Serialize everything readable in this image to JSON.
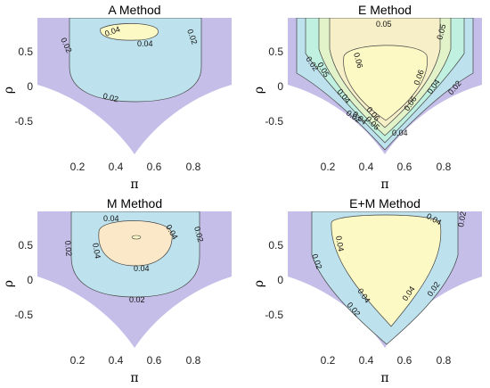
{
  "chart_data": [
    {
      "type": "contour",
      "title": "A Method",
      "xlabel": "π",
      "ylabel": "ρ",
      "xlim": [
        0,
        1
      ],
      "ylim": [
        -1,
        1
      ],
      "xticks": [
        "0.2",
        "0.4",
        "0.6",
        "0.8"
      ],
      "yticks": [
        "0.5",
        "0",
        "-0.5"
      ],
      "levels": [
        0.02,
        0.04
      ],
      "contour_labels": [
        "0.04",
        "0.04",
        "0.02",
        "0.02",
        "0.02"
      ],
      "grid": false
    },
    {
      "type": "contour",
      "title": "E Method",
      "xlabel": "π",
      "ylabel": "ρ",
      "xlim": [
        0,
        1
      ],
      "ylim": [
        -1,
        1
      ],
      "xticks": [
        "0.2",
        "0.4",
        "0.6",
        "0.8"
      ],
      "yticks": [
        "0.5",
        "0",
        "-0.5"
      ],
      "levels": [
        0.02,
        0.04,
        0.05,
        0.06
      ],
      "contour_labels": [
        "0.05",
        "0.05",
        "0.02",
        "0.04",
        "0.06",
        "0.06",
        "0.05",
        "0.04",
        "0.02",
        "0.04",
        "0.02",
        "0.06",
        "0.06",
        "0.05",
        "0.04"
      ],
      "grid": false
    },
    {
      "type": "contour",
      "title": "M Method",
      "xlabel": "π",
      "ylabel": "ρ",
      "xlim": [
        0,
        1
      ],
      "ylim": [
        -1,
        1
      ],
      "xticks": [
        "0.2",
        "0.4",
        "0.6",
        "0.8"
      ],
      "yticks": [
        "0.5",
        "0",
        "-0.5"
      ],
      "levels": [
        0.02,
        0.04
      ],
      "contour_labels": [
        "0.04",
        "0.04",
        "0.02",
        "0.04",
        "0.02",
        "0.04",
        "0.02"
      ],
      "grid": false
    },
    {
      "type": "contour",
      "title": "E+M Method",
      "xlabel": "π",
      "ylabel": "ρ",
      "xlim": [
        0,
        1
      ],
      "ylim": [
        -1,
        1
      ],
      "xticks": [
        "0.2",
        "0.4",
        "0.6",
        "0.8"
      ],
      "yticks": [
        "0.5",
        "0",
        "-0.5"
      ],
      "levels": [
        0.02,
        0.04
      ],
      "contour_labels": [
        "0.04",
        "0.04",
        "0.02",
        "0.02",
        "0.04",
        "0.02",
        "0.04",
        "0.02"
      ],
      "grid": false
    }
  ],
  "colors": {
    "outer": "#c4bee8",
    "band_002": "#bde2ed",
    "band_004": "#c0f0df",
    "band_005": "#e2f3c9",
    "band_006": "#f7efc8",
    "peak": "#fdf9c4",
    "m_peak": "#fbe8c8",
    "contour_line": "#444444"
  }
}
